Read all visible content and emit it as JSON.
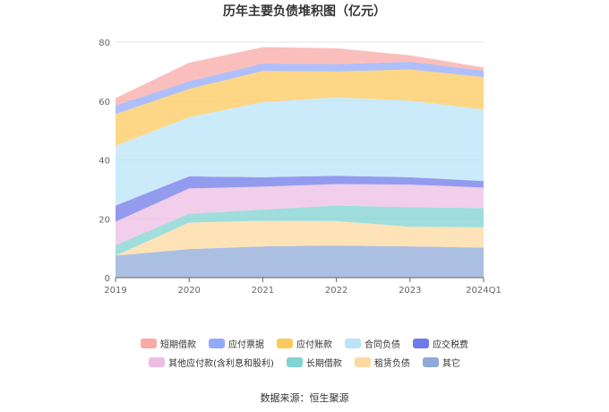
{
  "chart_data": {
    "type": "area",
    "stacked": true,
    "title": "历年主要负债堆积图（亿元）",
    "categories": [
      "2019",
      "2020",
      "2021",
      "2022",
      "2023",
      "2024Q1"
    ],
    "ylim": [
      0,
      80
    ],
    "yticks": [
      "0",
      "20",
      "40",
      "60",
      "80"
    ],
    "grid": true,
    "legend_position": "bottom",
    "series": [
      {
        "name": "其它",
        "color": "#8fa9d8",
        "values": [
          7.5,
          9.7,
          10.6,
          10.9,
          10.6,
          10.2
        ]
      },
      {
        "name": "租赁负债",
        "color": "#fdd9a0",
        "values": [
          0.0,
          9.0,
          8.7,
          8.3,
          6.7,
          6.9
        ]
      },
      {
        "name": "长期借款",
        "color": "#7fd3d0",
        "values": [
          3.5,
          3.0,
          3.8,
          5.3,
          6.6,
          6.5
        ]
      },
      {
        "name": "其他应付款(含利息和股利)",
        "color": "#ecbde1",
        "values": [
          8.0,
          8.6,
          7.8,
          7.3,
          7.7,
          7.0
        ]
      },
      {
        "name": "应交税费",
        "color": "#6f79ea",
        "values": [
          5.5,
          4.1,
          3.2,
          2.8,
          2.5,
          2.2
        ]
      },
      {
        "name": "合同负债",
        "color": "#b9e4f9",
        "values": [
          20.3,
          20.1,
          25.5,
          26.6,
          26.0,
          24.3
        ]
      },
      {
        "name": "应付账款",
        "color": "#fdc95d",
        "values": [
          10.7,
          9.6,
          10.6,
          8.8,
          10.6,
          11.0
        ]
      },
      {
        "name": "应付票据",
        "color": "#94aaf9",
        "values": [
          3.0,
          2.6,
          2.5,
          2.5,
          2.6,
          2.2
        ]
      },
      {
        "name": "短期借款",
        "color": "#f8aaa5",
        "values": [
          2.5,
          6.3,
          5.6,
          5.4,
          2.2,
          1.1
        ]
      }
    ],
    "legend_order": [
      "短期借款",
      "应付票据",
      "应付账款",
      "合同负债",
      "应交税费",
      "其他应付款(含利息和股利)",
      "长期借款",
      "租赁负债",
      "其它"
    ]
  },
  "source": "数据来源：恒生聚源"
}
